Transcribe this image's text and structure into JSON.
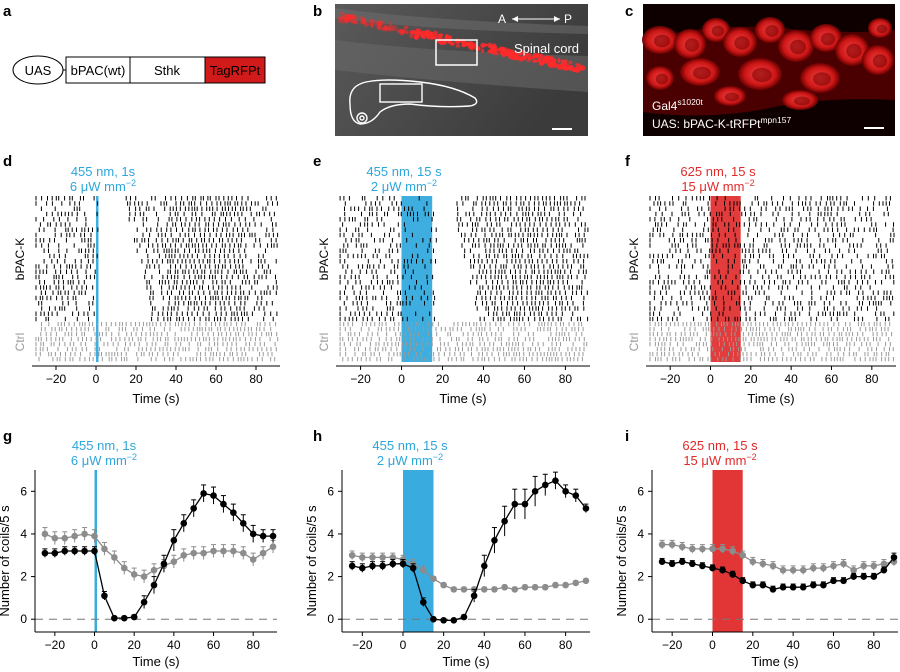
{
  "panel_letters": [
    "a",
    "b",
    "c",
    "d",
    "e",
    "f",
    "g",
    "h",
    "i"
  ],
  "panel_a": {
    "uas_label": "UAS",
    "blocks": [
      "bPAC(wt)",
      "Sthk",
      "TagRFPt"
    ],
    "colors": {
      "tag": "#d11b1b"
    }
  },
  "panel_b": {
    "axis_a": "A",
    "axis_p": "P",
    "label": "Spinal cord"
  },
  "panel_c": {
    "line1_main": "Gal4",
    "line1_sup": "s1020t",
    "line2_main": "UAS: bPAC-K-tRFPt",
    "line2_sup": "mpn157"
  },
  "stimuli": {
    "d": {
      "line1": "455 nm, 1s",
      "line2_pre": "6 μW mm",
      "sup": "−2",
      "color": "#2ea6dc",
      "start": 0,
      "end": 1
    },
    "e": {
      "line1": "455 nm, 15 s",
      "line2_pre": "2 μW mm",
      "sup": "−2",
      "color": "#2ea6dc",
      "start": 0,
      "end": 15
    },
    "f": {
      "line1": "625 nm, 15 s",
      "line2_pre": "15 μW mm",
      "sup": "−2",
      "color": "#e02b2b",
      "start": 0,
      "end": 15
    }
  },
  "raster": {
    "group_labels": [
      "bPAC-K",
      "Ctrl"
    ],
    "xlabel": "Time (s)",
    "xlim": [
      -32,
      92
    ],
    "xticks": [
      -20,
      0,
      20,
      40,
      60,
      80
    ],
    "tick_labels": [
      "−20",
      "0",
      "20",
      "40",
      "60",
      "80"
    ]
  },
  "chart_data": [
    {
      "type": "line",
      "panel": "g",
      "xlabel": "Time (s)",
      "ylabel": "Number of coils/5 s",
      "xlim": [
        -30,
        92
      ],
      "ylim": [
        -0.6,
        7
      ],
      "yticks": [
        0,
        2,
        4,
        6
      ],
      "xticks": [
        -20,
        0,
        20,
        40,
        60,
        80
      ],
      "stimulus": [
        0,
        1
      ],
      "x": [
        -25,
        -20,
        -15,
        -10,
        -5,
        0,
        5,
        10,
        15,
        20,
        25,
        30,
        35,
        40,
        45,
        50,
        55,
        60,
        65,
        70,
        75,
        80,
        85,
        90
      ],
      "series": [
        {
          "color": "#000000",
          "values": [
            3.1,
            3.1,
            3.2,
            3.2,
            3.2,
            3.2,
            1.1,
            0.05,
            0.05,
            0.1,
            0.8,
            1.6,
            2.6,
            3.7,
            4.5,
            5.2,
            5.9,
            5.8,
            5.4,
            5.0,
            4.5,
            4.0,
            3.9,
            3.9
          ],
          "err": [
            0.2,
            0.2,
            0.2,
            0.2,
            0.2,
            0.2,
            0.2,
            0.05,
            0.05,
            0.1,
            0.3,
            0.4,
            0.4,
            0.5,
            0.4,
            0.4,
            0.4,
            0.4,
            0.4,
            0.4,
            0.4,
            0.4,
            0.3,
            0.3
          ]
        },
        {
          "color": "#8c8c8c",
          "values": [
            4.0,
            3.8,
            3.8,
            3.9,
            4.0,
            3.9,
            3.3,
            2.9,
            2.4,
            2.1,
            2.0,
            2.3,
            2.5,
            2.7,
            3.0,
            3.1,
            3.1,
            3.2,
            3.2,
            3.2,
            3.1,
            2.8,
            3.1,
            3.4
          ],
          "err": [
            0.3,
            0.3,
            0.3,
            0.3,
            0.3,
            0.3,
            0.3,
            0.3,
            0.3,
            0.3,
            0.3,
            0.3,
            0.3,
            0.3,
            0.3,
            0.3,
            0.3,
            0.3,
            0.3,
            0.3,
            0.3,
            0.3,
            0.3,
            0.3
          ]
        }
      ]
    },
    {
      "type": "line",
      "panel": "h",
      "xlabel": "Time (s)",
      "ylabel": "Number of coils/5 s",
      "xlim": [
        -30,
        92
      ],
      "ylim": [
        -0.6,
        7
      ],
      "yticks": [
        0,
        2,
        4,
        6
      ],
      "xticks": [
        -20,
        0,
        20,
        40,
        60,
        80
      ],
      "stimulus": [
        0,
        15
      ],
      "x": [
        -25,
        -20,
        -15,
        -10,
        -5,
        0,
        5,
        10,
        15,
        20,
        25,
        30,
        35,
        40,
        45,
        50,
        55,
        60,
        65,
        70,
        75,
        80,
        85,
        90
      ],
      "series": [
        {
          "color": "#000000",
          "values": [
            2.5,
            2.4,
            2.5,
            2.5,
            2.6,
            2.6,
            2.4,
            0.8,
            0.0,
            -0.05,
            -0.05,
            0.1,
            1.1,
            2.5,
            3.7,
            4.6,
            5.4,
            5.4,
            6.0,
            6.3,
            6.5,
            6.0,
            5.8,
            5.2
          ],
          "err": [
            0.2,
            0.2,
            0.2,
            0.2,
            0.2,
            0.2,
            0.2,
            0.2,
            0.05,
            0.05,
            0.05,
            0.1,
            0.3,
            0.5,
            0.6,
            0.7,
            0.7,
            0.7,
            0.7,
            0.5,
            0.4,
            0.3,
            0.3,
            0.2
          ]
        },
        {
          "color": "#8c8c8c",
          "values": [
            3.0,
            2.9,
            2.9,
            2.9,
            2.9,
            2.8,
            2.6,
            2.3,
            1.9,
            1.6,
            1.4,
            1.4,
            1.4,
            1.4,
            1.4,
            1.5,
            1.4,
            1.5,
            1.5,
            1.5,
            1.6,
            1.6,
            1.7,
            1.8
          ],
          "err": [
            0.2,
            0.2,
            0.2,
            0.2,
            0.2,
            0.2,
            0.2,
            0.2,
            0.1,
            0.1,
            0.1,
            0.1,
            0.1,
            0.1,
            0.1,
            0.1,
            0.1,
            0.1,
            0.1,
            0.1,
            0.1,
            0.1,
            0.1,
            0.1
          ]
        }
      ]
    },
    {
      "type": "line",
      "panel": "i",
      "xlabel": "Time (s)",
      "ylabel": "Number of coils/5 s",
      "xlim": [
        -30,
        92
      ],
      "ylim": [
        -0.6,
        7
      ],
      "yticks": [
        0,
        2,
        4,
        6
      ],
      "xticks": [
        -20,
        0,
        20,
        40,
        60,
        80
      ],
      "stimulus": [
        0,
        15
      ],
      "x": [
        -25,
        -20,
        -15,
        -10,
        -5,
        0,
        5,
        10,
        15,
        20,
        25,
        30,
        35,
        40,
        45,
        50,
        55,
        60,
        65,
        70,
        75,
        80,
        85,
        90
      ],
      "series": [
        {
          "color": "#000000",
          "values": [
            2.7,
            2.6,
            2.7,
            2.6,
            2.5,
            2.4,
            2.3,
            2.1,
            1.8,
            1.6,
            1.6,
            1.4,
            1.5,
            1.5,
            1.5,
            1.6,
            1.6,
            1.8,
            1.8,
            2.0,
            2.0,
            2.0,
            2.3,
            2.9
          ],
          "err": [
            0.15,
            0.15,
            0.15,
            0.15,
            0.15,
            0.15,
            0.15,
            0.15,
            0.15,
            0.15,
            0.15,
            0.15,
            0.15,
            0.15,
            0.15,
            0.15,
            0.15,
            0.15,
            0.15,
            0.15,
            0.15,
            0.15,
            0.15,
            0.2
          ]
        },
        {
          "color": "#8c8c8c",
          "values": [
            3.5,
            3.5,
            3.4,
            3.3,
            3.3,
            3.3,
            3.3,
            3.2,
            3.0,
            2.7,
            2.6,
            2.5,
            2.3,
            2.3,
            2.3,
            2.4,
            2.4,
            2.5,
            2.6,
            2.3,
            2.5,
            2.5,
            2.6,
            2.7
          ],
          "err": [
            0.2,
            0.2,
            0.2,
            0.2,
            0.2,
            0.2,
            0.2,
            0.2,
            0.2,
            0.2,
            0.2,
            0.2,
            0.2,
            0.2,
            0.2,
            0.2,
            0.2,
            0.2,
            0.2,
            0.2,
            0.2,
            0.2,
            0.2,
            0.2
          ]
        }
      ]
    }
  ]
}
